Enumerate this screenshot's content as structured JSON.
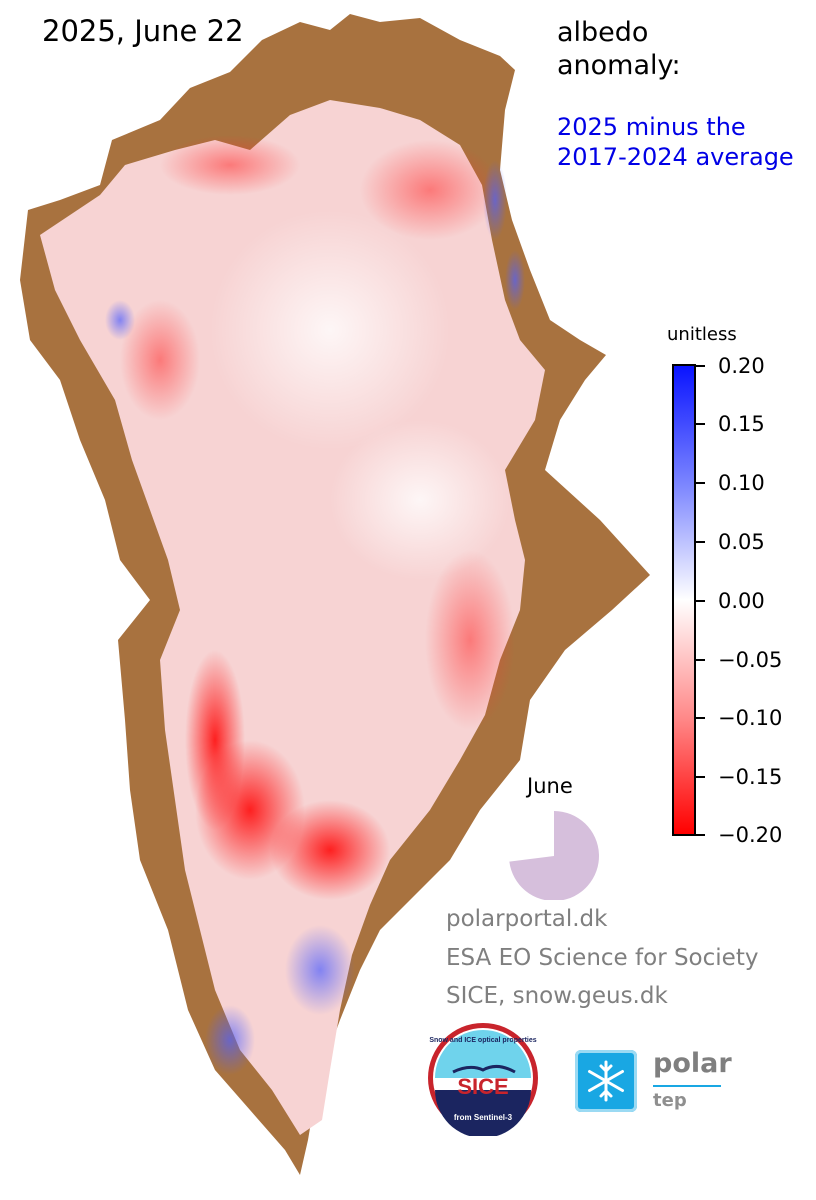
{
  "title": "2025, June 22",
  "anomaly_title": {
    "line1": "albedo",
    "line2": "anomaly:"
  },
  "subtitle": {
    "line1": "2025 minus the",
    "line2": "2017-2024 average"
  },
  "colorbar": {
    "unit_label": "unitless",
    "ticks": [
      "0.20",
      "0.15",
      "0.10",
      "0.05",
      "0.00",
      "−0.05",
      "−0.10",
      "−0.15",
      "−0.20"
    ],
    "range": [
      -0.2,
      0.2
    ],
    "colors": {
      "high": "#0a14ff",
      "zero": "#ffffff",
      "low": "#ff0000"
    }
  },
  "progress": {
    "label": "June",
    "fraction": 0.73,
    "color": "#d6bfdc"
  },
  "credits": [
    "polarportal.dk",
    "ESA EO Science for Society",
    "SICE, snow.geus.dk"
  ],
  "logos": {
    "sice": {
      "top_text": "Snow and ICE optical properties",
      "name": "SICE",
      "bottom_text": "from Sentinel-3"
    },
    "polar_tep": {
      "line1": "polar",
      "line2": "tep",
      "icon": "snowflake-icon"
    }
  },
  "map_colors": {
    "land": "#a8723f",
    "ice_base": "#f7d3d3",
    "positive": "#3f4cff",
    "negative": "#ff1a1a"
  }
}
